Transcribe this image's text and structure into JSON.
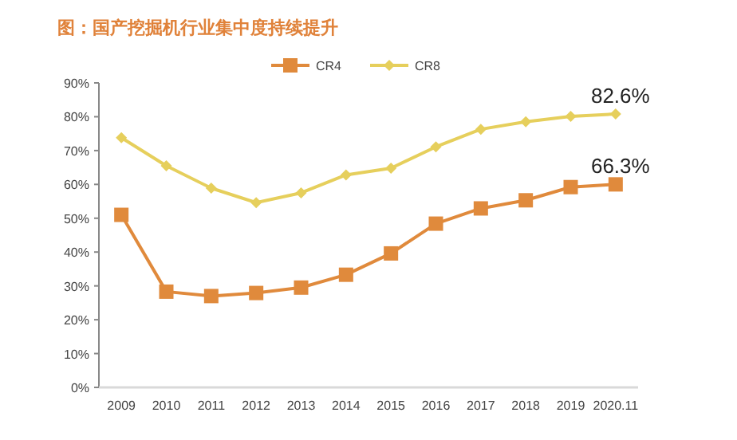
{
  "chart_data": {
    "type": "line",
    "title": "图：国产挖掘机行业集中度持续提升",
    "categories": [
      "2009",
      "2010",
      "2011",
      "2012",
      "2013",
      "2014",
      "2015",
      "2016",
      "2017",
      "2018",
      "2019",
      "2020.11"
    ],
    "series": [
      {
        "name": "CR4",
        "color": "#e08a3c",
        "marker": "square",
        "values": [
          51.0,
          28.3,
          27.0,
          27.9,
          29.5,
          33.3,
          39.6,
          48.4,
          52.9,
          55.3,
          59.2,
          60.0
        ]
      },
      {
        "name": "CR8",
        "color": "#e6cf5c",
        "marker": "diamond",
        "values": [
          73.8,
          65.5,
          58.9,
          54.6,
          57.5,
          62.8,
          64.8,
          71.1,
          76.3,
          78.5,
          80.1,
          80.8
        ]
      }
    ],
    "ylim": [
      0,
      90
    ],
    "yticks": [
      {
        "value": 0,
        "label": "0%"
      },
      {
        "value": 10,
        "label": "10%"
      },
      {
        "value": 20,
        "label": "20%"
      },
      {
        "value": 30,
        "label": "30%"
      },
      {
        "value": 40,
        "label": "40%"
      },
      {
        "value": 50,
        "label": "50%"
      },
      {
        "value": 60,
        "label": "60%"
      },
      {
        "value": 70,
        "label": "70%"
      },
      {
        "value": 80,
        "label": "80%"
      },
      {
        "value": 90,
        "label": "90%"
      }
    ],
    "legend": "top",
    "annotations": [
      {
        "text": "82.6%",
        "x": "2020.11",
        "y": 80.8
      },
      {
        "text": "66.3%",
        "x": "2020.11",
        "y": 60.0
      }
    ]
  }
}
